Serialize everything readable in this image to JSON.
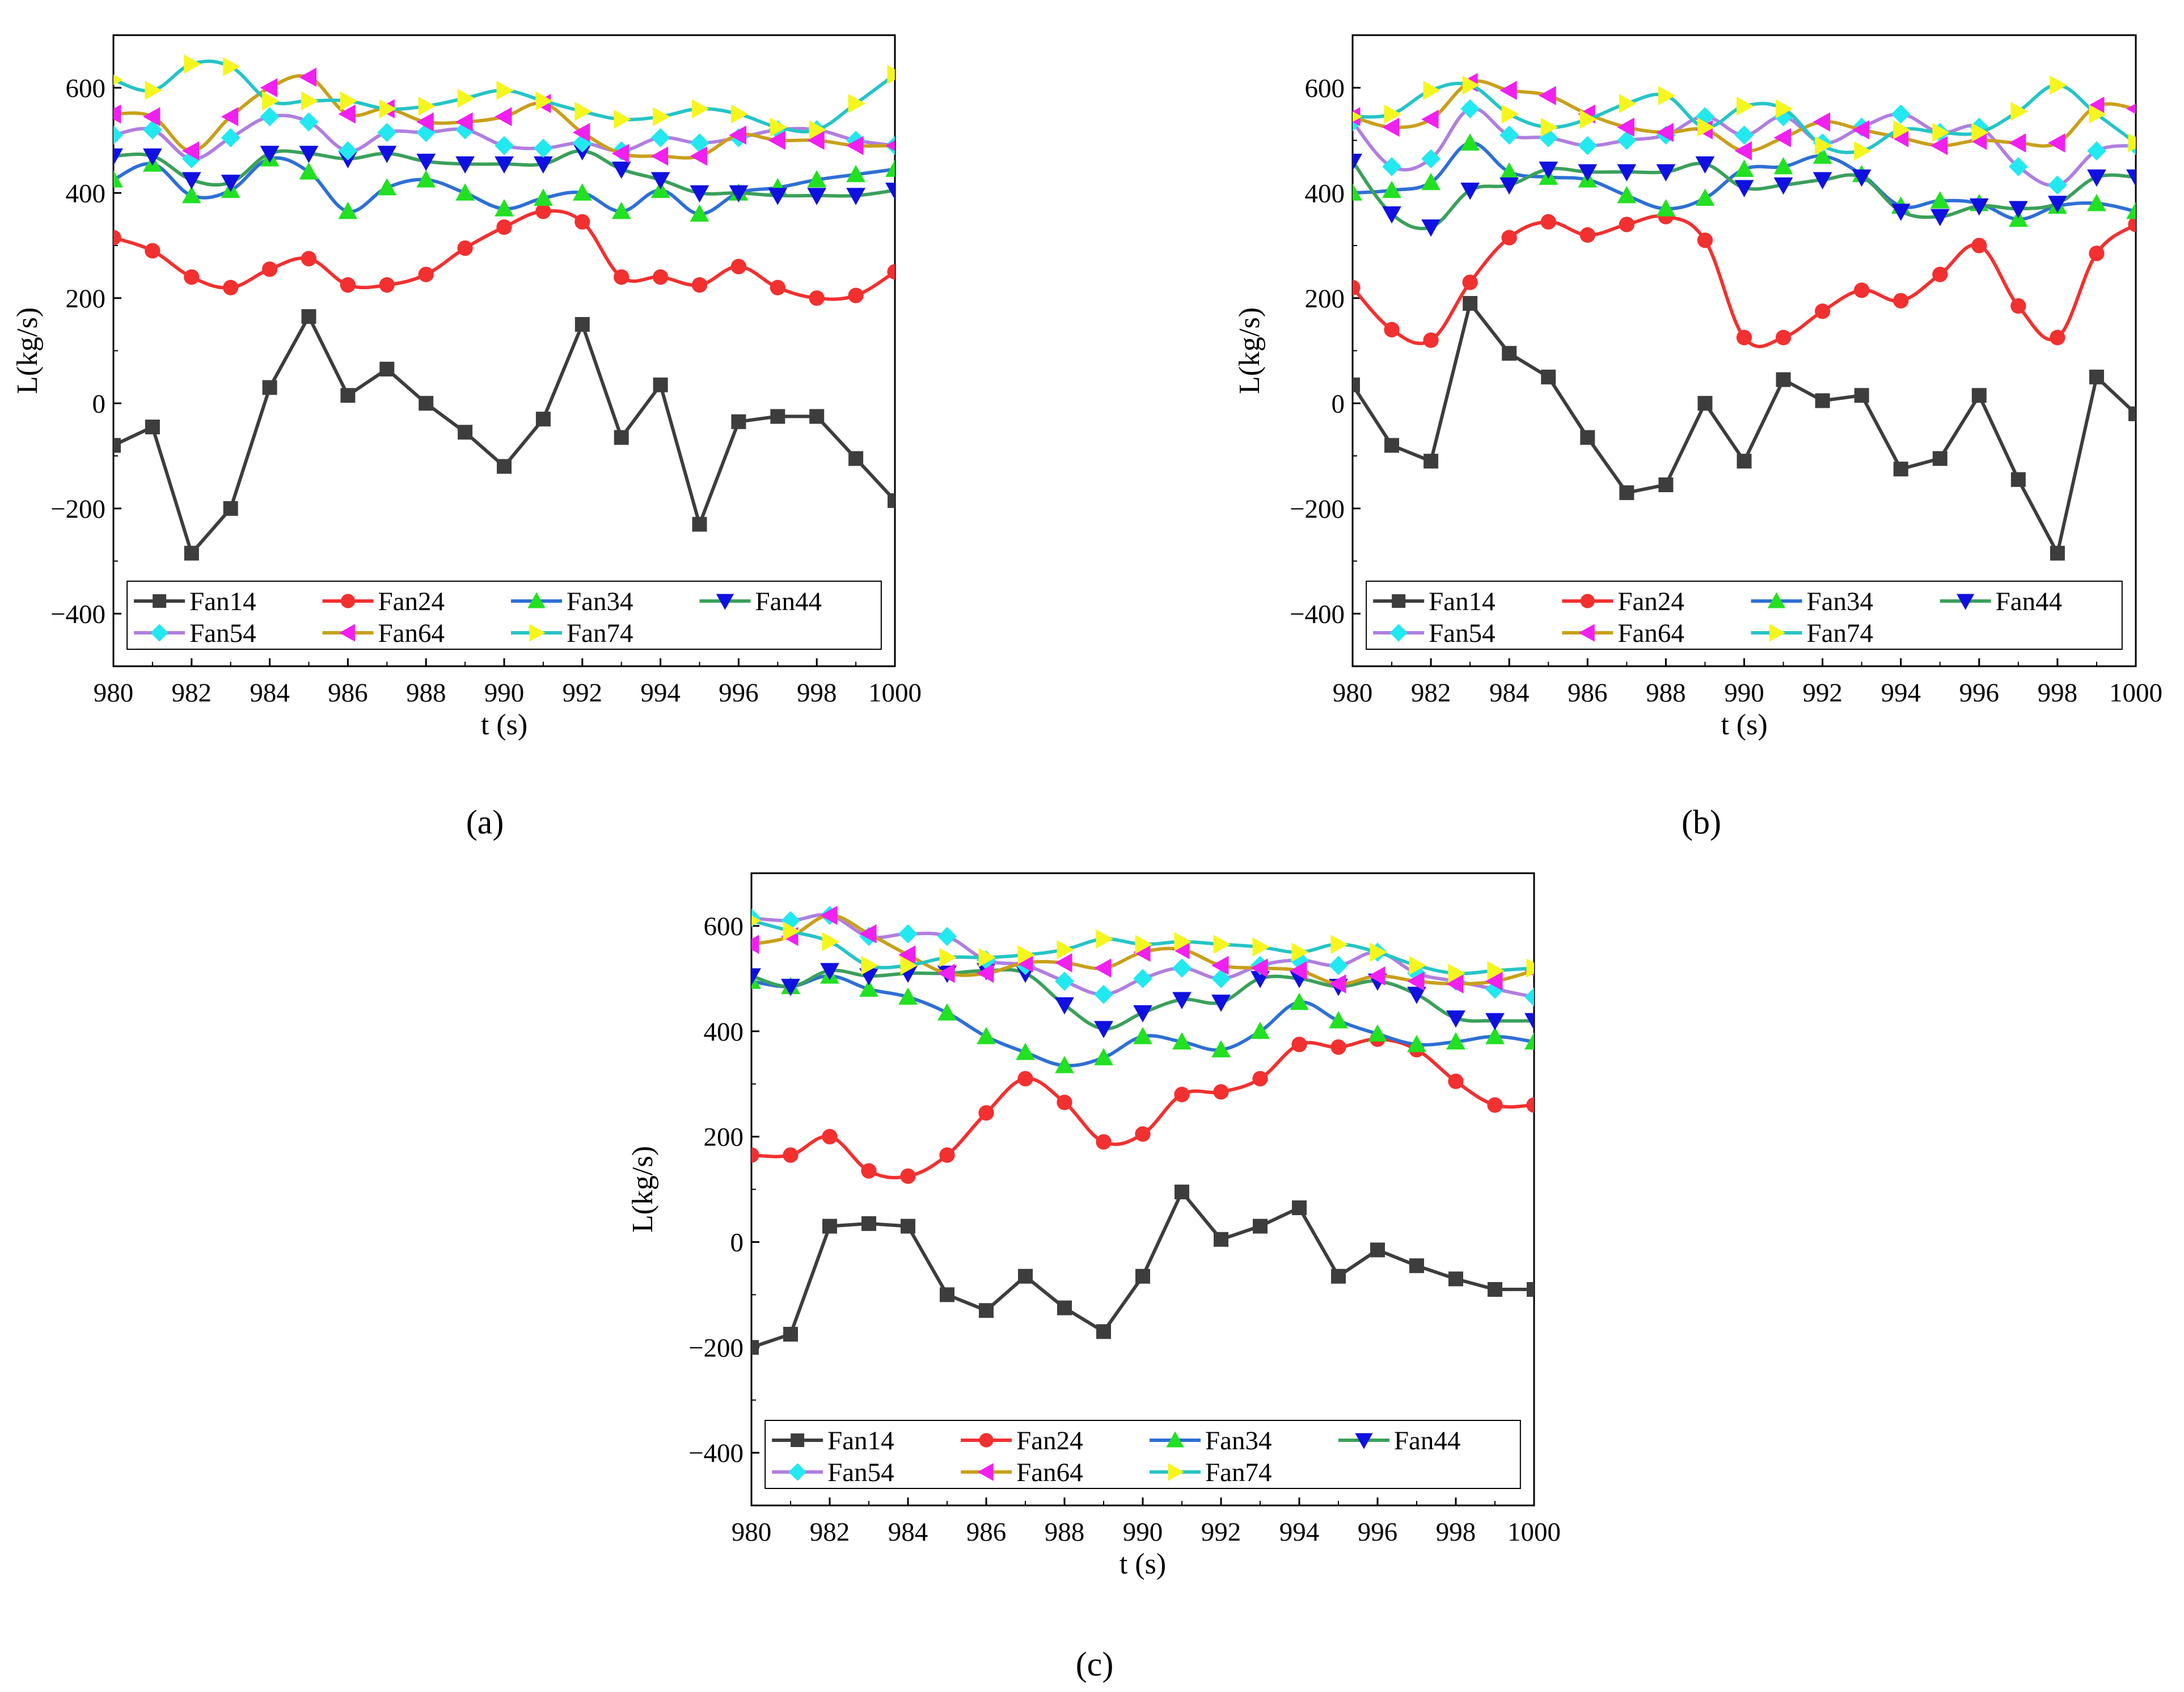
{
  "captions": [
    "(a)",
    "(b)",
    "(c)"
  ],
  "colors": {
    "Fan14": "#3d3d3d",
    "Fan24": "#f23030",
    "Fan34": "#2e6fd6",
    "Fan44": "#3aa05a",
    "Fan54": "#b07ee0",
    "Fan64": "#c8a01a",
    "Fan74": "#25c4c8",
    "Fan34_marker": "#22e022",
    "Fan44_marker": "#1010e0",
    "Fan54_marker": "#22e8f0",
    "Fan64_marker": "#f020f0",
    "Fan74_marker": "#f6f61e"
  },
  "markers": {
    "Fan14": "square",
    "Fan24": "circle",
    "Fan34": "triangle-up",
    "Fan44": "triangle-down",
    "Fan54": "diamond",
    "Fan64": "triangle-left",
    "Fan74": "triangle-right"
  },
  "chart_data": [
    {
      "type": "line",
      "panel": "a",
      "xlabel": "t (s)",
      "ylabel": "L(kg/s)",
      "xlim": [
        980,
        1000
      ],
      "ylim": [
        -500,
        700
      ],
      "xticks": [
        980,
        982,
        984,
        986,
        988,
        990,
        992,
        994,
        996,
        998,
        1000
      ],
      "xtick_labels": [
        "980",
        "982",
        "984",
        "986",
        "988",
        "990",
        "992",
        "994",
        "996",
        "998",
        "1000"
      ],
      "yticks": [
        -400,
        -200,
        0,
        200,
        400,
        600
      ],
      "ytick_labels": [
        "−400",
        "−200",
        "0",
        "200",
        "400",
        "600"
      ],
      "legend": "bottom",
      "x": [
        980,
        981,
        982,
        983,
        984,
        985,
        986,
        987,
        988,
        989,
        990,
        991,
        992,
        993,
        994,
        995,
        996,
        997,
        998,
        999,
        1000
      ],
      "series": [
        {
          "name": "Fan14",
          "values": [
            -80,
            -45,
            -285,
            -200,
            30,
            165,
            15,
            65,
            0,
            -55,
            -120,
            -30,
            150,
            -65,
            35,
            -230,
            -35,
            -25,
            -25,
            -105,
            -185
          ]
        },
        {
          "name": "Fan24",
          "values": [
            315,
            290,
            240,
            220,
            255,
            275,
            225,
            225,
            245,
            295,
            335,
            365,
            345,
            240,
            240,
            225,
            260,
            220,
            200,
            205,
            250
          ]
        },
        {
          "name": "Fan34",
          "values": [
            425,
            455,
            395,
            405,
            465,
            440,
            365,
            410,
            425,
            400,
            370,
            390,
            400,
            365,
            405,
            360,
            400,
            410,
            425,
            435,
            445
          ]
        },
        {
          "name": "Fan44",
          "values": [
            470,
            470,
            425,
            420,
            475,
            475,
            465,
            475,
            460,
            455,
            455,
            455,
            480,
            445,
            425,
            400,
            400,
            395,
            395,
            395,
            405
          ]
        },
        {
          "name": "Fan54",
          "values": [
            510,
            520,
            465,
            505,
            545,
            535,
            480,
            515,
            515,
            520,
            490,
            485,
            495,
            480,
            505,
            495,
            505,
            520,
            520,
            500,
            490
          ]
        },
        {
          "name": "Fan64",
          "values": [
            550,
            545,
            480,
            545,
            600,
            620,
            550,
            560,
            535,
            535,
            545,
            570,
            515,
            475,
            470,
            470,
            510,
            500,
            500,
            490,
            490
          ]
        },
        {
          "name": "Fan74",
          "values": [
            615,
            595,
            645,
            640,
            575,
            575,
            575,
            560,
            565,
            580,
            595,
            575,
            555,
            540,
            545,
            560,
            550,
            525,
            520,
            570,
            625
          ]
        }
      ]
    },
    {
      "type": "line",
      "panel": "b",
      "xlabel": "t (s)",
      "ylabel": "L(kg/s)",
      "xlim": [
        980,
        1000
      ],
      "ylim": [
        -500,
        700
      ],
      "xticks": [
        980,
        982,
        984,
        986,
        988,
        990,
        992,
        994,
        996,
        998,
        1000
      ],
      "xtick_labels": [
        "980",
        "982",
        "984",
        "986",
        "988",
        "990",
        "992",
        "994",
        "996",
        "998",
        "1000"
      ],
      "yticks": [
        -400,
        -200,
        0,
        200,
        400,
        600
      ],
      "ytick_labels": [
        "−400",
        "−200",
        "0",
        "200",
        "400",
        "600"
      ],
      "legend": "bottom",
      "x": [
        980,
        981,
        982,
        983,
        984,
        985,
        986,
        987,
        988,
        989,
        990,
        991,
        992,
        993,
        994,
        995,
        996,
        997,
        998,
        999,
        1000
      ],
      "series": [
        {
          "name": "Fan14",
          "values": [
            35,
            -80,
            -110,
            190,
            95,
            50,
            -65,
            -170,
            -155,
            0,
            -110,
            45,
            5,
            15,
            -125,
            -105,
            15,
            -145,
            -285,
            50,
            -20
          ]
        },
        {
          "name": "Fan24",
          "values": [
            220,
            140,
            120,
            230,
            315,
            345,
            320,
            340,
            355,
            310,
            125,
            125,
            175,
            215,
            195,
            245,
            300,
            185,
            125,
            285,
            340
          ]
        },
        {
          "name": "Fan34",
          "values": [
            400,
            405,
            420,
            495,
            440,
            430,
            425,
            395,
            370,
            390,
            445,
            450,
            470,
            435,
            375,
            385,
            380,
            350,
            375,
            380,
            365
          ]
        },
        {
          "name": "Fan44",
          "values": [
            460,
            360,
            335,
            405,
            415,
            445,
            440,
            440,
            440,
            455,
            410,
            415,
            425,
            430,
            365,
            355,
            375,
            370,
            380,
            430,
            430
          ]
        },
        {
          "name": "Fan54",
          "values": [
            535,
            450,
            465,
            560,
            510,
            505,
            490,
            500,
            510,
            545,
            510,
            545,
            495,
            525,
            550,
            515,
            525,
            450,
            415,
            480,
            490
          ]
        },
        {
          "name": "Fan64",
          "values": [
            545,
            525,
            540,
            610,
            595,
            585,
            550,
            525,
            515,
            520,
            480,
            505,
            535,
            520,
            505,
            490,
            500,
            495,
            495,
            565,
            560
          ]
        },
        {
          "name": "Fan74",
          "values": [
            545,
            550,
            595,
            605,
            550,
            525,
            540,
            570,
            585,
            525,
            565,
            560,
            490,
            480,
            520,
            515,
            515,
            555,
            605,
            550,
            495
          ]
        }
      ]
    },
    {
      "type": "line",
      "panel": "c",
      "xlabel": "t (s)",
      "ylabel": "L(kg/s)",
      "xlim": [
        980,
        1000
      ],
      "ylim": [
        -500,
        700
      ],
      "xticks": [
        980,
        982,
        984,
        986,
        988,
        990,
        992,
        994,
        996,
        998,
        1000
      ],
      "xtick_labels": [
        "980",
        "982",
        "984",
        "986",
        "988",
        "990",
        "992",
        "994",
        "996",
        "998",
        "1000"
      ],
      "yticks": [
        -400,
        -200,
        0,
        200,
        400,
        600
      ],
      "ytick_labels": [
        "−400",
        "−200",
        "0",
        "200",
        "400",
        "600"
      ],
      "legend": "bottom",
      "x": [
        980,
        981,
        982,
        983,
        984,
        985,
        986,
        987,
        988,
        989,
        990,
        991,
        992,
        993,
        994,
        995,
        996,
        997,
        998,
        999,
        1000
      ],
      "series": [
        {
          "name": "Fan14",
          "values": [
            -200,
            -175,
            30,
            35,
            30,
            -100,
            -130,
            -65,
            -125,
            -170,
            -65,
            95,
            5,
            30,
            65,
            -65,
            -15,
            -45,
            -70,
            -90,
            -90
          ]
        },
        {
          "name": "Fan24",
          "values": [
            165,
            165,
            200,
            135,
            125,
            165,
            245,
            310,
            265,
            190,
            205,
            280,
            285,
            310,
            375,
            370,
            385,
            365,
            305,
            260,
            260
          ]
        },
        {
          "name": "Fan34",
          "values": [
            495,
            485,
            505,
            480,
            465,
            435,
            390,
            360,
            335,
            350,
            390,
            380,
            365,
            400,
            455,
            420,
            395,
            375,
            380,
            390,
            380
          ]
        },
        {
          "name": "Fan44",
          "values": [
            505,
            485,
            515,
            505,
            510,
            510,
            515,
            510,
            450,
            405,
            435,
            460,
            455,
            500,
            500,
            485,
            495,
            470,
            425,
            420,
            420
          ]
        },
        {
          "name": "Fan54",
          "values": [
            615,
            610,
            620,
            580,
            585,
            580,
            535,
            525,
            495,
            470,
            500,
            520,
            500,
            525,
            535,
            525,
            550,
            510,
            495,
            480,
            465
          ]
        },
        {
          "name": "Fan64",
          "values": [
            565,
            580,
            620,
            585,
            545,
            510,
            510,
            530,
            530,
            520,
            550,
            555,
            525,
            520,
            515,
            490,
            505,
            495,
            490,
            495,
            515
          ]
        },
        {
          "name": "Fan74",
          "values": [
            610,
            590,
            570,
            525,
            525,
            540,
            540,
            545,
            555,
            575,
            565,
            570,
            565,
            560,
            550,
            565,
            550,
            525,
            510,
            515,
            520
          ]
        }
      ]
    }
  ]
}
